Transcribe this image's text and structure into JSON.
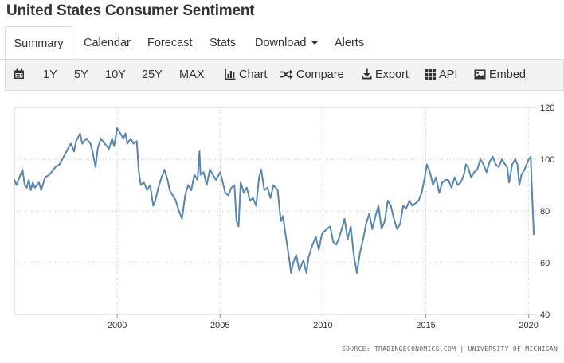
{
  "page": {
    "title": "United States Consumer Sentiment"
  },
  "tabs": [
    {
      "label": "Summary",
      "active": true
    },
    {
      "label": "Calendar"
    },
    {
      "label": "Forecast"
    },
    {
      "label": "Stats"
    },
    {
      "label": "Download"
    },
    {
      "label": "Alerts"
    }
  ],
  "toolbar": {
    "ranges": [
      "1Y",
      "5Y",
      "10Y",
      "25Y",
      "MAX"
    ],
    "chart": "Chart",
    "compare": "Compare",
    "export": "Export",
    "api": "API",
    "embed": "Embed"
  },
  "source": "SOURCE: TRADINGECONOMICS.COM | UNIVERSITY OF MICHIGAN",
  "colors": {
    "line": "#5a86ad",
    "grid": "#cccccc"
  },
  "chart_data": {
    "type": "line",
    "title": "",
    "xlabel": "",
    "ylabel": "",
    "xlim": [
      1995.0,
      2020.4
    ],
    "ylim": [
      40,
      120
    ],
    "y_ticks": [
      40,
      60,
      80,
      100,
      120
    ],
    "x_ticks": [
      2000,
      2005,
      2010,
      2015,
      2020
    ],
    "x_tick_labels": [
      "2000",
      "2005",
      "2010",
      "2015",
      "2020"
    ],
    "y_axis_position": "right",
    "grid": "dotted",
    "series": [
      {
        "values": [
          [
            1995.0,
            92
          ],
          [
            1995.1,
            90
          ],
          [
            1995.3,
            94
          ],
          [
            1995.4,
            96
          ],
          [
            1995.5,
            90
          ],
          [
            1995.6,
            89
          ],
          [
            1995.7,
            92
          ],
          [
            1995.8,
            88
          ],
          [
            1995.9,
            91
          ],
          [
            1996.0,
            89
          ],
          [
            1996.2,
            91
          ],
          [
            1996.3,
            88
          ],
          [
            1996.5,
            93
          ],
          [
            1996.7,
            94
          ],
          [
            1996.9,
            96
          ],
          [
            1997.0,
            97
          ],
          [
            1997.2,
            98
          ],
          [
            1997.4,
            101
          ],
          [
            1997.6,
            104
          ],
          [
            1997.75,
            106
          ],
          [
            1997.9,
            103
          ],
          [
            1998.0,
            107
          ],
          [
            1998.2,
            110
          ],
          [
            1998.3,
            106
          ],
          [
            1998.5,
            108
          ],
          [
            1998.7,
            106
          ],
          [
            1998.8,
            103
          ],
          [
            1998.95,
            97
          ],
          [
            1999.05,
            104
          ],
          [
            1999.2,
            108
          ],
          [
            1999.4,
            106
          ],
          [
            1999.6,
            104
          ],
          [
            1999.75,
            108
          ],
          [
            1999.85,
            105
          ],
          [
            2000.0,
            112
          ],
          [
            2000.15,
            110
          ],
          [
            2000.3,
            108
          ],
          [
            2000.4,
            110
          ],
          [
            2000.5,
            106
          ],
          [
            2000.65,
            108
          ],
          [
            2000.8,
            106
          ],
          [
            2000.95,
            107
          ],
          [
            2001.05,
            95
          ],
          [
            2001.15,
            90
          ],
          [
            2001.3,
            91
          ],
          [
            2001.45,
            88
          ],
          [
            2001.6,
            90
          ],
          [
            2001.75,
            82
          ],
          [
            2001.85,
            84
          ],
          [
            2002.0,
            89
          ],
          [
            2002.15,
            93
          ],
          [
            2002.3,
            96
          ],
          [
            2002.45,
            92
          ],
          [
            2002.55,
            88
          ],
          [
            2002.7,
            86
          ],
          [
            2002.85,
            84
          ],
          [
            2003.0,
            80
          ],
          [
            2003.15,
            77
          ],
          [
            2003.3,
            86
          ],
          [
            2003.45,
            90
          ],
          [
            2003.6,
            88
          ],
          [
            2003.75,
            94
          ],
          [
            2003.9,
            92
          ],
          [
            2004.0,
            103
          ],
          [
            2004.05,
            94
          ],
          [
            2004.2,
            95
          ],
          [
            2004.35,
            90
          ],
          [
            2004.5,
            96
          ],
          [
            2004.65,
            94
          ],
          [
            2004.8,
            92
          ],
          [
            2005.0,
            95
          ],
          [
            2005.1,
            92
          ],
          [
            2005.25,
            87
          ],
          [
            2005.4,
            86
          ],
          [
            2005.55,
            89
          ],
          [
            2005.7,
            90
          ],
          [
            2005.8,
            76
          ],
          [
            2005.9,
            74
          ],
          [
            2006.0,
            91
          ],
          [
            2006.15,
            87
          ],
          [
            2006.3,
            89
          ],
          [
            2006.45,
            84
          ],
          [
            2006.6,
            85
          ],
          [
            2006.75,
            82
          ],
          [
            2006.9,
            93
          ],
          [
            2007.0,
            96
          ],
          [
            2007.15,
            88
          ],
          [
            2007.3,
            89
          ],
          [
            2007.45,
            85
          ],
          [
            2007.6,
            90
          ],
          [
            2007.8,
            88
          ],
          [
            2007.95,
            76
          ],
          [
            2008.05,
            78
          ],
          [
            2008.2,
            70
          ],
          [
            2008.35,
            62
          ],
          [
            2008.45,
            56
          ],
          [
            2008.55,
            60
          ],
          [
            2008.7,
            63
          ],
          [
            2008.85,
            57
          ],
          [
            2008.95,
            59
          ],
          [
            2009.05,
            61
          ],
          [
            2009.2,
            56
          ],
          [
            2009.3,
            62
          ],
          [
            2009.45,
            66
          ],
          [
            2009.55,
            68
          ],
          [
            2009.65,
            70
          ],
          [
            2009.8,
            65
          ],
          [
            2009.95,
            71
          ],
          [
            2010.05,
            72
          ],
          [
            2010.2,
            73
          ],
          [
            2010.35,
            74
          ],
          [
            2010.5,
            68
          ],
          [
            2010.65,
            67
          ],
          [
            2010.8,
            70
          ],
          [
            2010.95,
            74
          ],
          [
            2011.05,
            77
          ],
          [
            2011.2,
            69
          ],
          [
            2011.35,
            74
          ],
          [
            2011.5,
            63
          ],
          [
            2011.65,
            56
          ],
          [
            2011.8,
            64
          ],
          [
            2011.95,
            69
          ],
          [
            2012.1,
            75
          ],
          [
            2012.25,
            79
          ],
          [
            2012.4,
            73
          ],
          [
            2012.55,
            78
          ],
          [
            2012.7,
            82
          ],
          [
            2012.85,
            73
          ],
          [
            2013.0,
            76
          ],
          [
            2013.15,
            84
          ],
          [
            2013.3,
            82
          ],
          [
            2013.45,
            77
          ],
          [
            2013.6,
            73
          ],
          [
            2013.75,
            75
          ],
          [
            2013.9,
            82
          ],
          [
            2014.05,
            81
          ],
          [
            2014.2,
            84
          ],
          [
            2014.35,
            82
          ],
          [
            2014.5,
            83
          ],
          [
            2014.65,
            84
          ],
          [
            2014.8,
            87
          ],
          [
            2014.95,
            93
          ],
          [
            2015.05,
            98
          ],
          [
            2015.2,
            95
          ],
          [
            2015.35,
            90
          ],
          [
            2015.5,
            93
          ],
          [
            2015.65,
            87
          ],
          [
            2015.8,
            91
          ],
          [
            2015.95,
            92
          ],
          [
            2016.1,
            92
          ],
          [
            2016.25,
            89
          ],
          [
            2016.4,
            93
          ],
          [
            2016.55,
            90
          ],
          [
            2016.7,
            91
          ],
          [
            2016.85,
            94
          ],
          [
            2016.95,
            98
          ],
          [
            2017.05,
            97
          ],
          [
            2017.2,
            93
          ],
          [
            2017.35,
            95
          ],
          [
            2017.5,
            96
          ],
          [
            2017.65,
            100
          ],
          [
            2017.8,
            98
          ],
          [
            2017.95,
            95
          ],
          [
            2018.1,
            99
          ],
          [
            2018.25,
            101
          ],
          [
            2018.4,
            98
          ],
          [
            2018.55,
            97
          ],
          [
            2018.7,
            100
          ],
          [
            2018.85,
            98
          ],
          [
            2018.95,
            97
          ],
          [
            2019.05,
            91
          ],
          [
            2019.2,
            98
          ],
          [
            2019.35,
            100
          ],
          [
            2019.45,
            98
          ],
          [
            2019.55,
            90
          ],
          [
            2019.65,
            94
          ],
          [
            2019.8,
            96
          ],
          [
            2019.95,
            99
          ],
          [
            2020.0,
            100
          ],
          [
            2020.1,
            101
          ],
          [
            2020.15,
            90
          ],
          [
            2020.25,
            71
          ]
        ]
      }
    ]
  }
}
